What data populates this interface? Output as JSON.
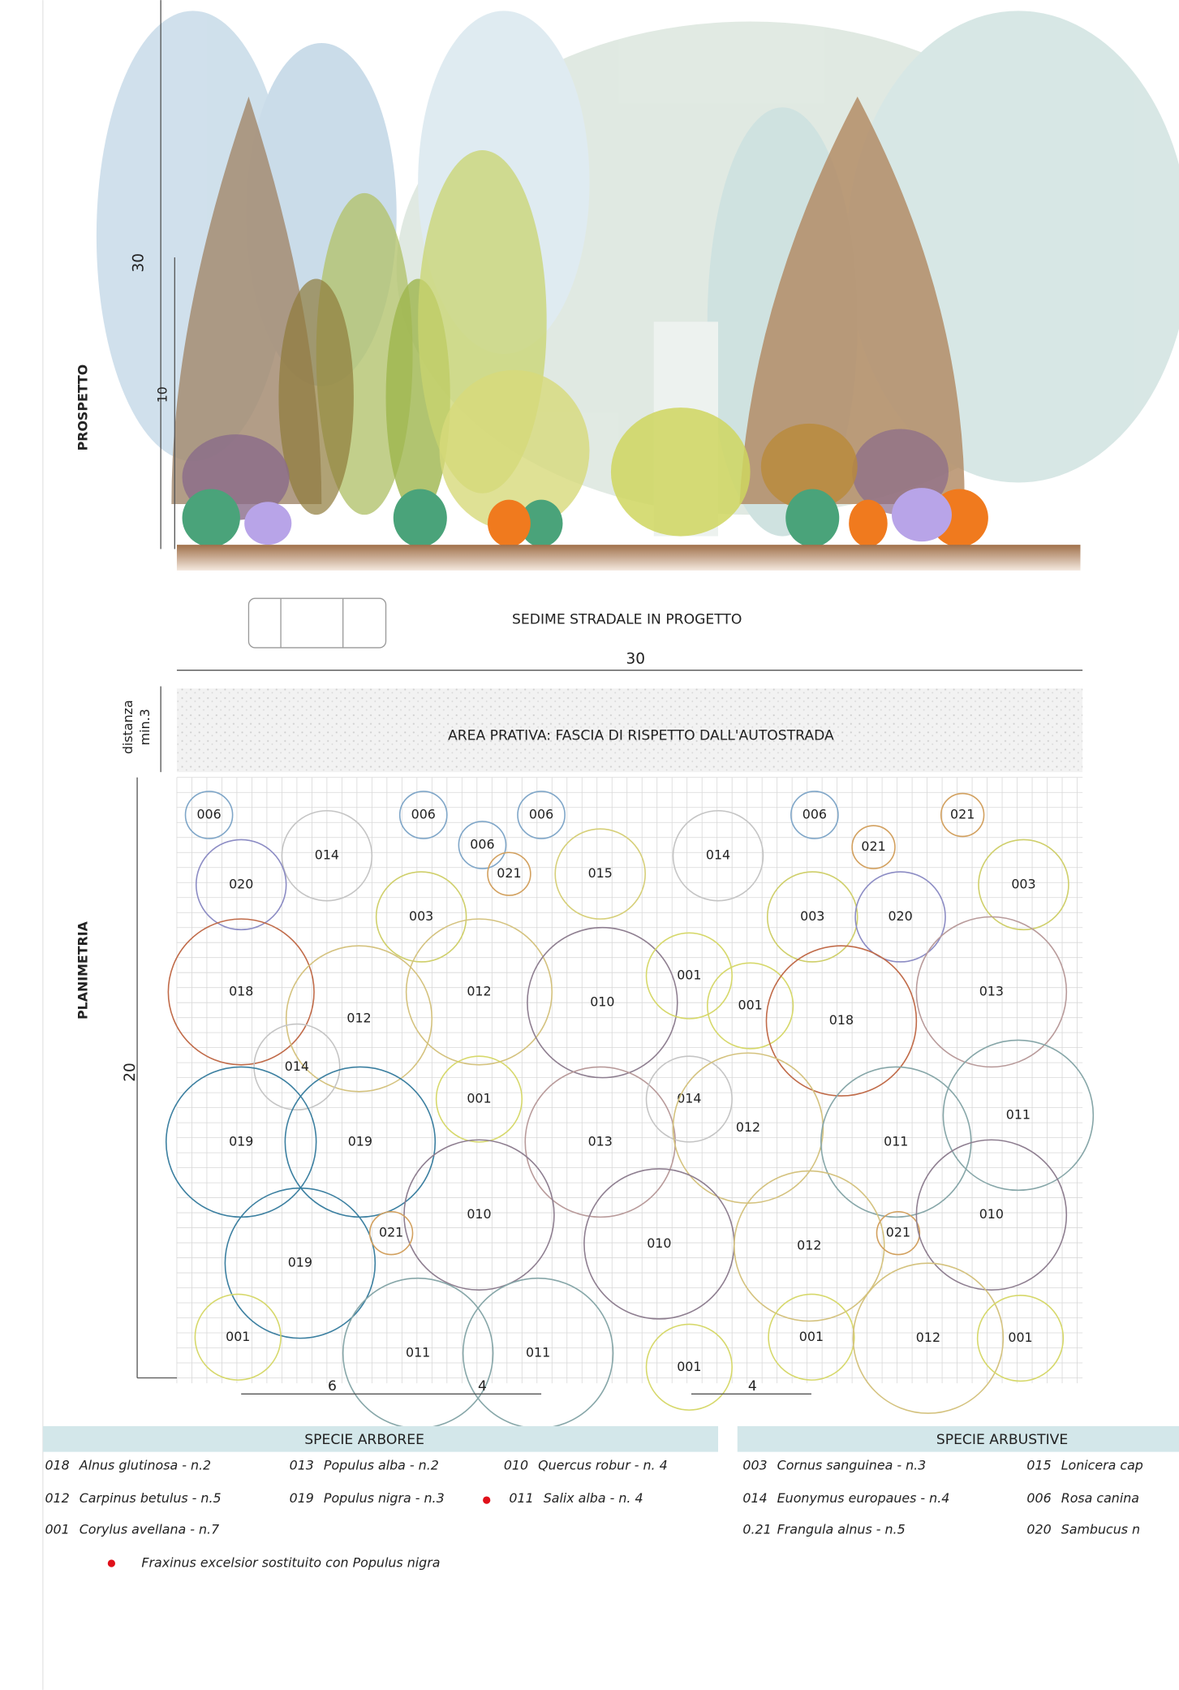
{
  "elevation": {
    "label": "PROSPETTO",
    "height_total": "30",
    "height_small": "10"
  },
  "road": {
    "label": "SEDIME STRADALE IN PROGETTO"
  },
  "plan": {
    "label": "PLANIMETRIA",
    "width": "30",
    "depth": "20",
    "buffer_label_1": "distanza",
    "buffer_label_2": "min.3",
    "buffer_area": "AREA PRATIVA: FASCIA DI RISPETTO DALL'AUTOSTRADA",
    "spacing": [
      "6",
      "4",
      "4"
    ],
    "plants": [
      "006",
      "006",
      "006",
      "006",
      "021",
      "014",
      "006",
      "021",
      "015",
      "014",
      "021",
      "003",
      "020",
      "003",
      "003",
      "020",
      "018",
      "012",
      "012",
      "010",
      "001",
      "001",
      "018",
      "013",
      "014",
      "019",
      "019",
      "001",
      "013",
      "014",
      "012",
      "011",
      "011",
      "010",
      "019",
      "021",
      "010",
      "012",
      "021",
      "010",
      "001",
      "011",
      "011",
      "001",
      "001",
      "012",
      "001"
    ]
  },
  "legend": {
    "trees": {
      "title": "SPECIE ARBOREE",
      "items": [
        {
          "code": "018",
          "name": "Alnus glutinosa - n.2"
        },
        {
          "code": "013",
          "name": "Populus alba - n.2"
        },
        {
          "code": "010",
          "name": "Quercus robur - n. 4"
        },
        {
          "code": "012",
          "name": "Carpinus betulus - n.5"
        },
        {
          "code": "019",
          "name": "Populus nigra - n.3"
        },
        {
          "code": "011",
          "name": "Salix alba - n. 4"
        },
        {
          "code": "001",
          "name": "Corylus avellana - n.7"
        }
      ]
    },
    "shrubs": {
      "title": "SPECIE ARBUSTIVE",
      "items": [
        {
          "code": "003",
          "name": "Cornus sanguinea - n.3"
        },
        {
          "code": "015",
          "name": "Lonicera cap"
        },
        {
          "code": "014",
          "name": "Euonymus europaues - n.4"
        },
        {
          "code": "006",
          "name": "Rosa canina"
        },
        {
          "code": "0.21",
          "name": "Frangula alnus - n.5"
        },
        {
          "code": "020",
          "name": "Sambucus n"
        }
      ]
    },
    "note": "Fraxinus excelsior sostituito con Populus nigra"
  }
}
